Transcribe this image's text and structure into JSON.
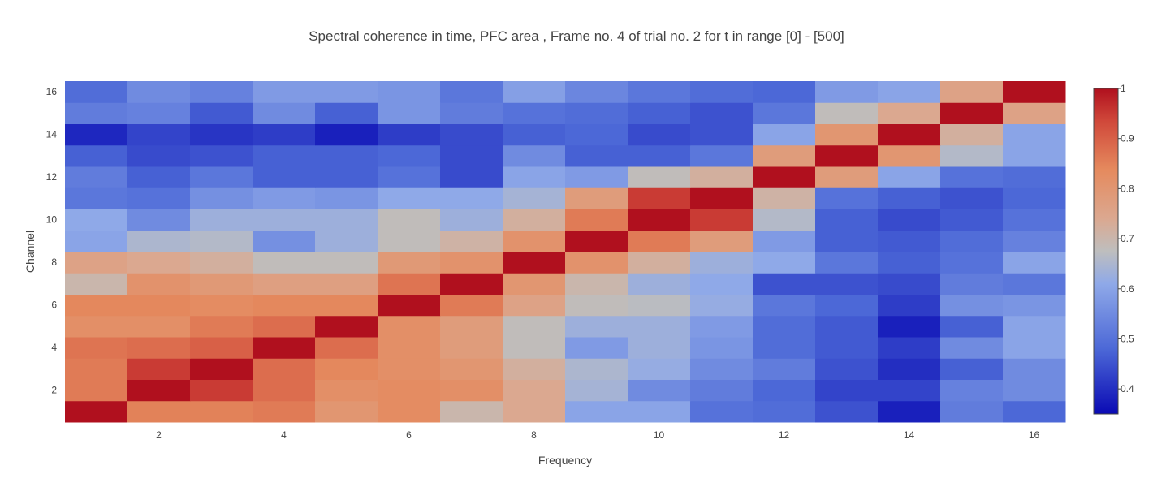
{
  "chart_data": {
    "type": "heatmap",
    "title": "Spectral coherence in time, PFC area , Frame no. 4 of trial no. 2 for t in range [0] - [500]",
    "xlabel": "Frequency",
    "ylabel": "Channel",
    "x": [
      1,
      2,
      3,
      4,
      5,
      6,
      7,
      8,
      9,
      10,
      11,
      12,
      13,
      14,
      15,
      16
    ],
    "y": [
      1,
      2,
      3,
      4,
      5,
      6,
      7,
      8,
      9,
      10,
      11,
      12,
      13,
      14,
      15,
      16
    ],
    "xlim": [
      0.5,
      16.5
    ],
    "ylim": [
      0.5,
      16.5
    ],
    "x_ticks": [
      2,
      4,
      6,
      8,
      10,
      12,
      14,
      16
    ],
    "y_ticks": [
      2,
      4,
      6,
      8,
      10,
      12,
      14,
      16
    ],
    "colorscale": "coolwarm",
    "colorscale_stops": [
      [
        0.0,
        "#0a0ab4"
      ],
      [
        0.2,
        "#4c68d7"
      ],
      [
        0.4,
        "#8fa9e8"
      ],
      [
        0.5,
        "#bebebe"
      ],
      [
        0.6,
        "#dba890"
      ],
      [
        0.75,
        "#e58a5e"
      ],
      [
        0.9,
        "#d0483a"
      ],
      [
        1.0,
        "#b0101e"
      ]
    ],
    "zmin": 0.35,
    "zmax": 1.0,
    "colorbar_ticks": [
      0.4,
      0.5,
      0.6,
      0.7,
      0.8,
      0.9,
      1
    ],
    "z": [
      [
        1.0,
        0.85,
        0.85,
        0.86,
        0.8,
        0.83,
        0.7,
        0.74,
        0.6,
        0.6,
        0.5,
        0.49,
        0.45,
        0.38,
        0.52,
        0.48
      ],
      [
        0.86,
        1.0,
        0.95,
        0.88,
        0.82,
        0.83,
        0.82,
        0.74,
        0.64,
        0.55,
        0.52,
        0.48,
        0.43,
        0.43,
        0.53,
        0.55
      ],
      [
        0.86,
        0.95,
        1.0,
        0.88,
        0.84,
        0.82,
        0.8,
        0.72,
        0.65,
        0.62,
        0.55,
        0.52,
        0.45,
        0.4,
        0.47,
        0.55
      ],
      [
        0.87,
        0.88,
        0.9,
        1.0,
        0.88,
        0.82,
        0.78,
        0.68,
        0.58,
        0.63,
        0.57,
        0.49,
        0.46,
        0.42,
        0.55,
        0.6
      ],
      [
        0.82,
        0.82,
        0.86,
        0.88,
        1.0,
        0.82,
        0.78,
        0.68,
        0.63,
        0.63,
        0.58,
        0.49,
        0.46,
        0.38,
        0.47,
        0.6
      ],
      [
        0.84,
        0.84,
        0.83,
        0.84,
        0.84,
        1.0,
        0.86,
        0.76,
        0.68,
        0.67,
        0.62,
        0.51,
        0.48,
        0.42,
        0.56,
        0.57
      ],
      [
        0.7,
        0.81,
        0.79,
        0.77,
        0.77,
        0.87,
        1.0,
        0.8,
        0.7,
        0.63,
        0.61,
        0.45,
        0.45,
        0.44,
        0.52,
        0.51
      ],
      [
        0.76,
        0.74,
        0.72,
        0.68,
        0.68,
        0.79,
        0.81,
        1.0,
        0.81,
        0.72,
        0.63,
        0.61,
        0.51,
        0.47,
        0.5,
        0.6
      ],
      [
        0.6,
        0.65,
        0.66,
        0.56,
        0.63,
        0.68,
        0.71,
        0.81,
        1.0,
        0.86,
        0.78,
        0.58,
        0.47,
        0.46,
        0.49,
        0.53
      ],
      [
        0.61,
        0.55,
        0.63,
        0.63,
        0.63,
        0.68,
        0.63,
        0.72,
        0.86,
        1.0,
        0.95,
        0.66,
        0.47,
        0.44,
        0.46,
        0.5
      ],
      [
        0.51,
        0.5,
        0.56,
        0.58,
        0.57,
        0.61,
        0.61,
        0.64,
        0.78,
        0.95,
        1.0,
        0.71,
        0.5,
        0.47,
        0.45,
        0.48
      ],
      [
        0.52,
        0.47,
        0.51,
        0.47,
        0.47,
        0.5,
        0.44,
        0.6,
        0.58,
        0.68,
        0.72,
        1.0,
        0.78,
        0.6,
        0.5,
        0.49
      ],
      [
        0.47,
        0.44,
        0.45,
        0.47,
        0.47,
        0.48,
        0.44,
        0.55,
        0.47,
        0.47,
        0.51,
        0.78,
        1.0,
        0.8,
        0.66,
        0.6
      ],
      [
        0.39,
        0.43,
        0.41,
        0.42,
        0.38,
        0.42,
        0.44,
        0.47,
        0.48,
        0.44,
        0.45,
        0.6,
        0.8,
        1.0,
        0.72,
        0.6
      ],
      [
        0.52,
        0.53,
        0.46,
        0.55,
        0.47,
        0.57,
        0.52,
        0.5,
        0.49,
        0.47,
        0.45,
        0.51,
        0.68,
        0.74,
        1.0,
        0.76
      ],
      [
        0.49,
        0.55,
        0.53,
        0.58,
        0.58,
        0.57,
        0.51,
        0.59,
        0.54,
        0.51,
        0.49,
        0.48,
        0.58,
        0.6,
        0.76,
        1.0
      ]
    ]
  }
}
